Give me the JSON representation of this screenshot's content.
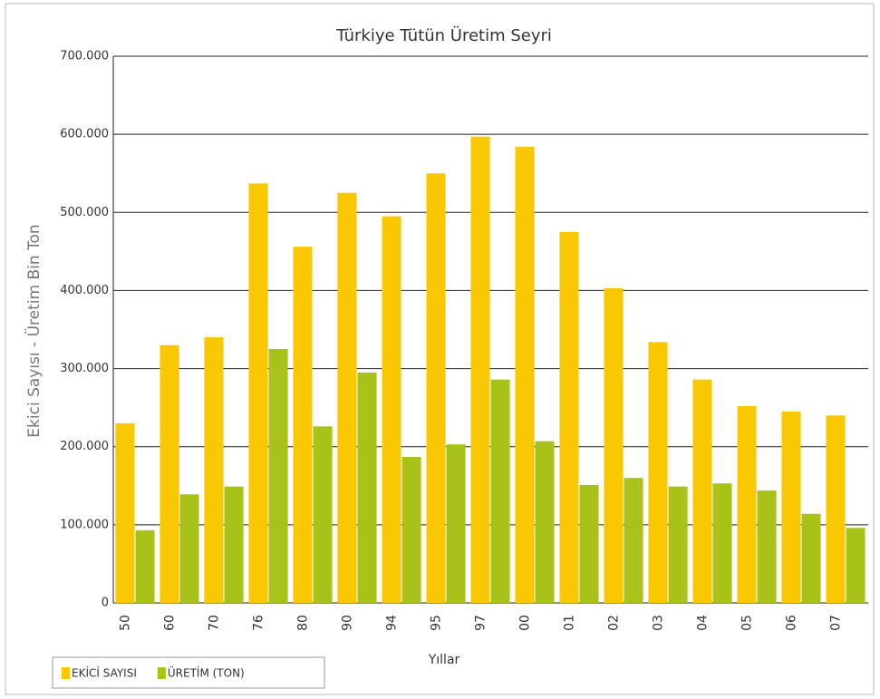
{
  "chart_data": {
    "type": "bar",
    "title": "Türkiye Tütün Üretim Seyri",
    "x_label": "Yıllar",
    "y_label": "Ekici Sayısı - Üretim Bin Ton",
    "categories": [
      "50",
      "60",
      "70",
      "76",
      "80",
      "90",
      "94",
      "95",
      "97",
      "00",
      "01",
      "02",
      "03",
      "04",
      "05",
      "06",
      "07"
    ],
    "series": [
      {
        "name": "EKİCİ SAYISI",
        "color": "#f9c800",
        "values": [
          230000,
          330000,
          340000,
          537000,
          456000,
          525000,
          495000,
          550000,
          597000,
          584000,
          475000,
          403000,
          334000,
          286000,
          252000,
          245000,
          240000
        ]
      },
      {
        "name": "ÜRETİM (TON)",
        "color": "#a9c21a",
        "values": [
          93000,
          139000,
          149000,
          325000,
          226000,
          295000,
          187000,
          203000,
          286000,
          207000,
          151000,
          160000,
          149000,
          153000,
          144000,
          114000,
          96000
        ]
      }
    ],
    "ylim": [
      0,
      700000
    ],
    "yticks": [
      0,
      {
        "value": 100000,
        "label": "100.000"
      },
      {
        "value": 200000,
        "label": "200.000"
      },
      {
        "value": 300000,
        "label": "300.000"
      },
      {
        "value": 400000,
        "label": "400.000"
      },
      {
        "value": 500000,
        "label": "500.000"
      },
      {
        "value": 600000,
        "label": "600.000"
      },
      {
        "value": 700000,
        "label": "700.000"
      }
    ],
    "grid": true,
    "legend": "bottom-left"
  }
}
